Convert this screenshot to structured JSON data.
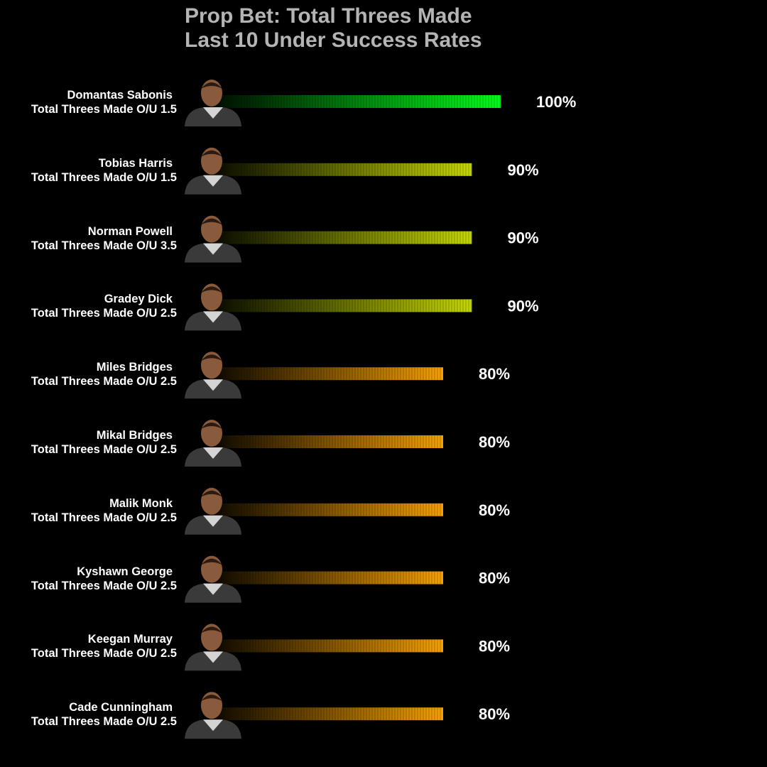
{
  "title_line1": "Prop Bet: Total Threes Made",
  "title_line2": "Last 10 Under Success Rates",
  "colors": {
    "background": "#000000",
    "title": "#b4b4b4",
    "text": "#ffffff",
    "tier_100": "#00ff1a",
    "tier_90": "#c4d600",
    "tier_80": "#f5a000"
  },
  "chart_data": {
    "type": "bar",
    "orientation": "horizontal",
    "title": "Prop Bet: Total Threes Made Last 10 Under Success Rates",
    "xlim": [
      0,
      100
    ],
    "unit": "%",
    "categories": [
      "Domantas Sabonis",
      "Tobias Harris",
      "Norman Powell",
      "Gradey Dick",
      "Miles Bridges",
      "Mikal Bridges",
      "Malik Monk",
      "Kyshawn George",
      "Keegan Murray",
      "Cade Cunningham"
    ],
    "values": [
      100,
      90,
      90,
      90,
      80,
      80,
      80,
      80,
      80,
      80
    ],
    "rows": [
      {
        "name": "Domantas Sabonis",
        "prop": "Total Threes Made O/U 1.5",
        "value": 100,
        "label": "100%",
        "headshot": "player-headshot"
      },
      {
        "name": "Tobias Harris",
        "prop": "Total Threes Made O/U 1.5",
        "value": 90,
        "label": "90%",
        "headshot": "player-headshot"
      },
      {
        "name": "Norman Powell",
        "prop": "Total Threes Made O/U 3.5",
        "value": 90,
        "label": "90%",
        "headshot": "player-headshot"
      },
      {
        "name": "Gradey Dick",
        "prop": "Total Threes Made O/U 2.5",
        "value": 90,
        "label": "90%",
        "headshot": "player-headshot"
      },
      {
        "name": "Miles Bridges",
        "prop": "Total Threes Made O/U 2.5",
        "value": 80,
        "label": "80%",
        "headshot": "player-headshot"
      },
      {
        "name": "Mikal Bridges",
        "prop": "Total Threes Made O/U 2.5",
        "value": 80,
        "label": "80%",
        "headshot": "player-headshot"
      },
      {
        "name": "Malik Monk",
        "prop": "Total Threes Made O/U 2.5",
        "value": 80,
        "label": "80%",
        "headshot": "player-headshot"
      },
      {
        "name": "Kyshawn George",
        "prop": "Total Threes Made O/U 2.5",
        "value": 80,
        "label": "80%",
        "headshot": "player-headshot"
      },
      {
        "name": "Keegan Murray",
        "prop": "Total Threes Made O/U 2.5",
        "value": 80,
        "label": "80%",
        "headshot": "player-headshot"
      },
      {
        "name": "Cade Cunningham",
        "prop": "Total Threes Made O/U 2.5",
        "value": 80,
        "label": "80%",
        "headshot": "player-headshot"
      }
    ]
  }
}
